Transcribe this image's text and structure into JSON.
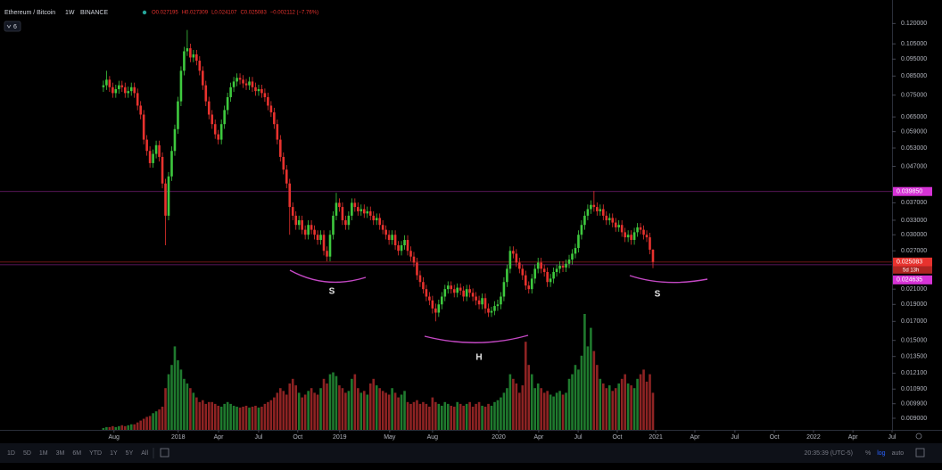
{
  "chart_data": {
    "type": "candlestick",
    "symbol": "Ethereum / Bitcoin",
    "interval": "1W",
    "exchange": "BINANCE",
    "legend": [
      "O0.027195",
      "H0.027309",
      "L0.024107",
      "C0.025083",
      "−0.002112 (−7.76%)"
    ],
    "indicator_count": 6,
    "up_color": "#3ec93e",
    "down_color": "#e8322e",
    "volume_up_color": "#1f7a2e",
    "volume_down_color": "#8e2323",
    "log_scale": true,
    "grid": false,
    "xlim": [
      -33.3,
      254
    ],
    "xticks": [
      {
        "value": 3.4,
        "label": "Aug"
      },
      {
        "value": 24.1,
        "label": "2018"
      },
      {
        "value": 37.1,
        "label": "Apr"
      },
      {
        "value": 50,
        "label": "Jul"
      },
      {
        "value": 62.6,
        "label": "Oct"
      },
      {
        "value": 76.1,
        "label": "2019"
      },
      {
        "value": 92.2,
        "label": "May"
      },
      {
        "value": 106,
        "label": "Aug"
      },
      {
        "value": 127.3,
        "label": "2020"
      },
      {
        "value": 140.2,
        "label": "Apr"
      },
      {
        "value": 152.9,
        "label": "Jul"
      },
      {
        "value": 165.5,
        "label": "Oct"
      },
      {
        "value": 177.9,
        "label": "2021"
      },
      {
        "value": 190.5,
        "label": "Apr"
      },
      {
        "value": 203.4,
        "label": "Jul"
      },
      {
        "value": 216.1,
        "label": "Oct"
      },
      {
        "value": 228.7,
        "label": "2022"
      },
      {
        "value": 241.4,
        "label": "Apr"
      },
      {
        "value": 254,
        "label": "Jul"
      }
    ],
    "ylim": [
      0.00834,
      0.14
    ],
    "yticks": [
      {
        "value": 0.12,
        "label": "0.120000"
      },
      {
        "value": 0.105,
        "label": "0.105000"
      },
      {
        "value": 0.095,
        "label": "0.095000"
      },
      {
        "value": 0.085,
        "label": "0.085000"
      },
      {
        "value": 0.075,
        "label": "0.075000"
      },
      {
        "value": 0.065,
        "label": "0.065000"
      },
      {
        "value": 0.059,
        "label": "0.059000"
      },
      {
        "value": 0.053,
        "label": "0.053000"
      },
      {
        "value": 0.047,
        "label": "0.047000"
      },
      {
        "value": 0.037,
        "label": "0.037000"
      },
      {
        "value": 0.033,
        "label": "0.033000"
      },
      {
        "value": 0.03,
        "label": "0.030000"
      },
      {
        "value": 0.027,
        "label": "0.027000"
      },
      {
        "value": 0.021,
        "label": "0.021000"
      },
      {
        "value": 0.019,
        "label": "0.019000"
      },
      {
        "value": 0.017,
        "label": "0.017000"
      },
      {
        "value": 0.015,
        "label": "0.015000"
      },
      {
        "value": 0.0135,
        "label": "0.013500"
      },
      {
        "value": 0.0121,
        "label": "0.012100"
      },
      {
        "value": 0.0109,
        "label": "0.010900"
      },
      {
        "value": 0.0099,
        "label": "0.009900"
      },
      {
        "value": 0.009,
        "label": "0.009000"
      }
    ],
    "price_lines": [
      {
        "value": 0.03985,
        "label": "0.039850",
        "color": "#d633d6"
      },
      {
        "value": 0.025083,
        "label": "0.025083",
        "color": "#e8322e",
        "countdown": "5d 13h"
      },
      {
        "value": 0.024635,
        "label": "0.024635",
        "color": "#d633d6"
      }
    ],
    "annotations": [
      "S",
      "H",
      "S"
    ],
    "annotation_color": "#c448c4",
    "open": [
      0.079,
      0.08,
      0.083,
      0.079,
      0.076,
      0.078,
      0.08,
      0.079,
      0.076,
      0.077,
      0.079,
      0.076,
      0.07,
      0.066,
      0.056,
      0.052,
      0.048,
      0.051,
      0.054,
      0.05,
      0.042,
      0.034,
      0.044,
      0.052,
      0.06,
      0.072,
      0.088,
      0.1,
      0.102,
      0.096,
      0.098,
      0.094,
      0.088,
      0.08,
      0.072,
      0.066,
      0.062,
      0.058,
      0.056,
      0.062,
      0.068,
      0.074,
      0.079,
      0.082,
      0.084,
      0.083,
      0.081,
      0.08,
      0.082,
      0.079,
      0.077,
      0.078,
      0.076,
      0.074,
      0.07,
      0.067,
      0.062,
      0.056,
      0.05,
      0.046,
      0.042,
      0.036,
      0.034,
      0.032,
      0.033,
      0.031,
      0.03,
      0.032,
      0.031,
      0.03,
      0.029,
      0.03,
      0.027,
      0.026,
      0.03,
      0.034,
      0.037,
      0.036,
      0.033,
      0.032,
      0.034,
      0.037,
      0.036,
      0.035,
      0.0355,
      0.0345,
      0.035,
      0.034,
      0.033,
      0.0335,
      0.032,
      0.031,
      0.03,
      0.029,
      0.03,
      0.028,
      0.027,
      0.028,
      0.029,
      0.027,
      0.026,
      0.025,
      0.023,
      0.022,
      0.021,
      0.02,
      0.0195,
      0.0185,
      0.018,
      0.019,
      0.02,
      0.021,
      0.0215,
      0.021,
      0.0205,
      0.0212,
      0.0208,
      0.02,
      0.021,
      0.0205,
      0.02,
      0.0195,
      0.019,
      0.0198,
      0.0185,
      0.018,
      0.0182,
      0.0188,
      0.019,
      0.02,
      0.022,
      0.024,
      0.027,
      0.0265,
      0.025,
      0.024,
      0.023,
      0.0215,
      0.021,
      0.0225,
      0.024,
      0.025,
      0.024,
      0.0235,
      0.022,
      0.0225,
      0.0235,
      0.024,
      0.0245,
      0.0242,
      0.0248,
      0.0255,
      0.0265,
      0.0275,
      0.03,
      0.032,
      0.034,
      0.0355,
      0.0365,
      0.036,
      0.035,
      0.0355,
      0.034,
      0.033,
      0.0335,
      0.0325,
      0.0315,
      0.032,
      0.0305,
      0.0295,
      0.03,
      0.029,
      0.0305,
      0.0315,
      0.031,
      0.03,
      0.0295,
      0.0272
    ],
    "high": [
      0.0825,
      0.088,
      0.085,
      0.0814,
      0.0803,
      0.0824,
      0.0824,
      0.0814,
      0.0793,
      0.0814,
      0.0814,
      0.0783,
      0.0721,
      0.068,
      0.0577,
      0.0536,
      0.0525,
      0.0556,
      0.0556,
      0.0515,
      0.0433,
      0.0453,
      0.0536,
      0.0618,
      0.0742,
      0.0906,
      0.103,
      0.115,
      0.1051,
      0.1009,
      0.1009,
      0.0968,
      0.0906,
      0.0824,
      0.0742,
      0.068,
      0.0639,
      0.0597,
      0.0639,
      0.07,
      0.0762,
      0.0814,
      0.0845,
      0.0865,
      0.0865,
      0.0855,
      0.0834,
      0.0845,
      0.0845,
      0.0814,
      0.0803,
      0.0803,
      0.0783,
      0.0762,
      0.0721,
      0.069,
      0.0639,
      0.0577,
      0.0515,
      0.0474,
      0.0433,
      0.0371,
      0.035,
      0.034,
      0.034,
      0.0319,
      0.033,
      0.033,
      0.0319,
      0.0309,
      0.0309,
      0.0309,
      0.0278,
      0.0309,
      0.035,
      0.0395,
      0.0381,
      0.0371,
      0.034,
      0.035,
      0.0381,
      0.0381,
      0.0371,
      0.0366,
      0.0366,
      0.0361,
      0.0361,
      0.035,
      0.0345,
      0.0345,
      0.033,
      0.0319,
      0.0309,
      0.0309,
      0.0309,
      0.0288,
      0.0288,
      0.0299,
      0.0299,
      0.0278,
      0.0268,
      0.0258,
      0.0237,
      0.0227,
      0.0216,
      0.0206,
      0.0201,
      0.0191,
      0.0196,
      0.0206,
      0.0216,
      0.0221,
      0.0221,
      0.0216,
      0.0218,
      0.0218,
      0.0214,
      0.0216,
      0.0216,
      0.0211,
      0.0206,
      0.0201,
      0.0204,
      0.0204,
      0.0191,
      0.0187,
      0.0194,
      0.0196,
      0.0206,
      0.0227,
      0.0247,
      0.0278,
      0.0278,
      0.0273,
      0.0258,
      0.0247,
      0.0237,
      0.0221,
      0.0232,
      0.0247,
      0.0258,
      0.0258,
      0.0247,
      0.0242,
      0.0232,
      0.0242,
      0.0247,
      0.0252,
      0.0252,
      0.0255,
      0.0263,
      0.0273,
      0.0283,
      0.0309,
      0.033,
      0.035,
      0.0366,
      0.0376,
      0.04,
      0.0371,
      0.0366,
      0.0366,
      0.035,
      0.0345,
      0.0345,
      0.0335,
      0.033,
      0.033,
      0.0314,
      0.0309,
      0.0309,
      0.0314,
      0.0324,
      0.0324,
      0.0319,
      0.0309,
      0.0304,
      0.0273
    ],
    "low": [
      0.0766,
      0.0776,
      0.0766,
      0.0737,
      0.0737,
      0.0757,
      0.0766,
      0.0737,
      0.0737,
      0.0747,
      0.0737,
      0.0679,
      0.064,
      0.0543,
      0.0504,
      0.0466,
      0.0466,
      0.0495,
      0.0485,
      0.0407,
      0.028,
      0.033,
      0.0427,
      0.0504,
      0.0582,
      0.0698,
      0.0854,
      0.097,
      0.0931,
      0.0931,
      0.0912,
      0.0854,
      0.0776,
      0.0698,
      0.064,
      0.0601,
      0.0563,
      0.0543,
      0.0543,
      0.0601,
      0.066,
      0.0718,
      0.0766,
      0.0795,
      0.0805,
      0.0786,
      0.0776,
      0.0776,
      0.0766,
      0.0747,
      0.0747,
      0.0737,
      0.0718,
      0.0679,
      0.065,
      0.0601,
      0.0543,
      0.0485,
      0.0446,
      0.0407,
      0.03,
      0.033,
      0.031,
      0.031,
      0.0301,
      0.0291,
      0.0291,
      0.0301,
      0.0291,
      0.0281,
      0.0281,
      0.0262,
      0.0252,
      0.0252,
      0.0291,
      0.033,
      0.0349,
      0.032,
      0.031,
      0.031,
      0.033,
      0.0349,
      0.034,
      0.034,
      0.0335,
      0.0335,
      0.033,
      0.032,
      0.032,
      0.031,
      0.0301,
      0.0291,
      0.0281,
      0.0281,
      0.0272,
      0.0262,
      0.0262,
      0.0272,
      0.0262,
      0.0252,
      0.0243,
      0.0223,
      0.0213,
      0.0204,
      0.0194,
      0.0189,
      0.0179,
      0.017,
      0.0175,
      0.0184,
      0.0194,
      0.0204,
      0.0204,
      0.0199,
      0.0199,
      0.0202,
      0.0194,
      0.0194,
      0.0199,
      0.0194,
      0.0189,
      0.0184,
      0.0184,
      0.0179,
      0.0175,
      0.0175,
      0.0177,
      0.0182,
      0.0184,
      0.0194,
      0.0213,
      0.0233,
      0.0257,
      0.0243,
      0.0233,
      0.0223,
      0.0209,
      0.0204,
      0.0204,
      0.0218,
      0.0233,
      0.0233,
      0.0228,
      0.0213,
      0.0213,
      0.0218,
      0.0228,
      0.0233,
      0.0235,
      0.0235,
      0.0241,
      0.0247,
      0.0257,
      0.0267,
      0.0291,
      0.031,
      0.033,
      0.0344,
      0.0349,
      0.034,
      0.034,
      0.033,
      0.032,
      0.032,
      0.0315,
      0.0306,
      0.0306,
      0.0296,
      0.0286,
      0.0286,
      0.0281,
      0.0281,
      0.0296,
      0.0301,
      0.0291,
      0.0286,
      0.0264,
      0.0241
    ],
    "close": [
      0.08,
      0.083,
      0.079,
      0.076,
      0.078,
      0.08,
      0.079,
      0.076,
      0.077,
      0.079,
      0.076,
      0.07,
      0.066,
      0.056,
      0.052,
      0.048,
      0.051,
      0.054,
      0.05,
      0.042,
      0.034,
      0.044,
      0.052,
      0.06,
      0.072,
      0.088,
      0.1,
      0.102,
      0.096,
      0.098,
      0.094,
      0.088,
      0.08,
      0.072,
      0.066,
      0.062,
      0.058,
      0.056,
      0.062,
      0.068,
      0.074,
      0.079,
      0.082,
      0.084,
      0.083,
      0.081,
      0.08,
      0.082,
      0.079,
      0.077,
      0.078,
      0.076,
      0.074,
      0.07,
      0.067,
      0.062,
      0.056,
      0.05,
      0.046,
      0.042,
      0.036,
      0.034,
      0.032,
      0.033,
      0.031,
      0.03,
      0.032,
      0.031,
      0.03,
      0.029,
      0.03,
      0.027,
      0.026,
      0.03,
      0.034,
      0.037,
      0.036,
      0.033,
      0.032,
      0.034,
      0.037,
      0.036,
      0.035,
      0.0355,
      0.0345,
      0.035,
      0.034,
      0.033,
      0.0335,
      0.032,
      0.031,
      0.03,
      0.029,
      0.03,
      0.028,
      0.027,
      0.028,
      0.029,
      0.027,
      0.026,
      0.025,
      0.023,
      0.022,
      0.021,
      0.02,
      0.0195,
      0.0185,
      0.018,
      0.019,
      0.02,
      0.021,
      0.0215,
      0.021,
      0.0205,
      0.0212,
      0.0208,
      0.02,
      0.021,
      0.0205,
      0.02,
      0.0195,
      0.019,
      0.0198,
      0.0185,
      0.018,
      0.0182,
      0.0188,
      0.019,
      0.02,
      0.022,
      0.024,
      0.027,
      0.0265,
      0.025,
      0.024,
      0.023,
      0.0215,
      0.021,
      0.0225,
      0.024,
      0.025,
      0.024,
      0.0235,
      0.022,
      0.0225,
      0.0235,
      0.024,
      0.0245,
      0.0242,
      0.0248,
      0.0255,
      0.0265,
      0.0275,
      0.03,
      0.032,
      0.034,
      0.0355,
      0.0365,
      0.036,
      0.035,
      0.0355,
      0.034,
      0.033,
      0.0335,
      0.0325,
      0.0315,
      0.032,
      0.0305,
      0.0295,
      0.03,
      0.029,
      0.0305,
      0.0315,
      0.031,
      0.03,
      0.0295,
      0.0272,
      0.0251
    ],
    "volume": [
      2,
      3,
      3,
      4,
      3,
      4,
      5,
      4,
      5,
      6,
      6,
      8,
      10,
      12,
      14,
      15,
      18,
      20,
      22,
      25,
      45,
      60,
      70,
      90,
      75,
      65,
      55,
      50,
      45,
      40,
      35,
      30,
      32,
      28,
      30,
      30,
      28,
      26,
      25,
      28,
      30,
      28,
      26,
      25,
      24,
      25,
      26,
      24,
      25,
      26,
      24,
      25,
      28,
      30,
      32,
      35,
      40,
      45,
      42,
      38,
      50,
      55,
      48,
      40,
      35,
      38,
      42,
      45,
      40,
      38,
      45,
      55,
      50,
      60,
      62,
      58,
      48,
      45,
      40,
      42,
      55,
      60,
      45,
      40,
      42,
      38,
      50,
      55,
      48,
      45,
      42,
      40,
      38,
      45,
      40,
      35,
      38,
      42,
      30,
      28,
      30,
      32,
      28,
      30,
      28,
      25,
      35,
      30,
      28,
      26,
      30,
      28,
      26,
      25,
      30,
      28,
      26,
      28,
      30,
      25,
      28,
      30,
      26,
      25,
      28,
      26,
      30,
      32,
      35,
      40,
      45,
      60,
      55,
      50,
      40,
      48,
      95,
      70,
      60,
      45,
      50,
      45,
      40,
      42,
      38,
      36,
      40,
      42,
      38,
      40,
      55,
      60,
      70,
      65,
      80,
      125,
      90,
      110,
      85,
      70,
      55,
      50,
      45,
      48,
      42,
      45,
      50,
      55,
      60,
      50,
      48,
      45,
      55,
      60,
      65,
      52,
      60,
      40
    ]
  },
  "toolbar": {
    "ranges": [
      "1D",
      "5D",
      "1M",
      "3M",
      "6M",
      "YTD",
      "1Y",
      "5Y",
      "All"
    ],
    "clock": "20:35:39 (UTC-5)",
    "scale_buttons": [
      "%",
      "log",
      "auto"
    ]
  }
}
